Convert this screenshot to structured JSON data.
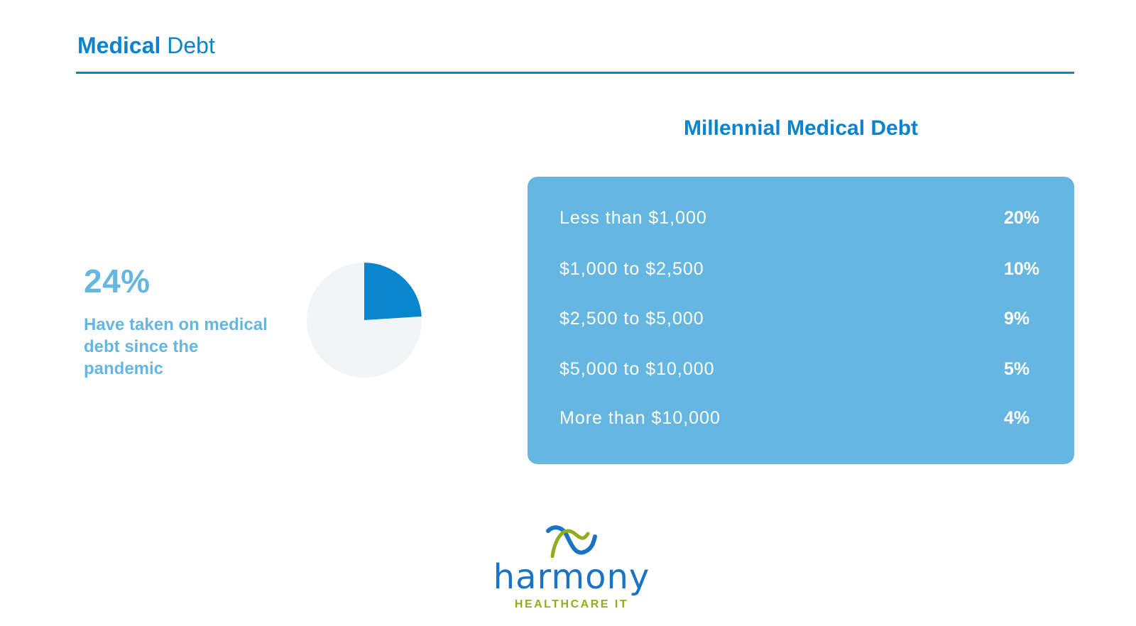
{
  "header": {
    "title_bold": "Medical",
    "title_light": "Debt"
  },
  "stat": {
    "value": "24%",
    "caption": "Have taken on medical debt since the pandemic"
  },
  "chart_data": [
    {
      "type": "pie",
      "title": "",
      "slices": [
        {
          "label": "Have taken on medical debt since the pandemic",
          "value": 24,
          "color": "#0a86cf"
        },
        {
          "label": "",
          "value": 76,
          "color": "#f3f4f6"
        }
      ]
    },
    {
      "type": "table",
      "title": "Millennial Medical Debt",
      "rows": [
        {
          "label": "Less than $1,000",
          "value": "20%"
        },
        {
          "label": "$1,000 to $2,500",
          "value": "10%"
        },
        {
          "label": "$2,500 to $5,000",
          "value": "9%"
        },
        {
          "label": "$5,000 to $10,000",
          "value": "5%"
        },
        {
          "label": "More than $10,000",
          "value": "4%"
        }
      ]
    }
  ],
  "logo": {
    "name": "harmony",
    "tagline": "HEALTHCARE IT"
  },
  "colors": {
    "accent": "#0b83cf",
    "light_blue": "#66b6e2",
    "pie_fill": "#0a86cf",
    "pie_bg": "#f3f4f6",
    "logo_green": "#8fae1b"
  }
}
